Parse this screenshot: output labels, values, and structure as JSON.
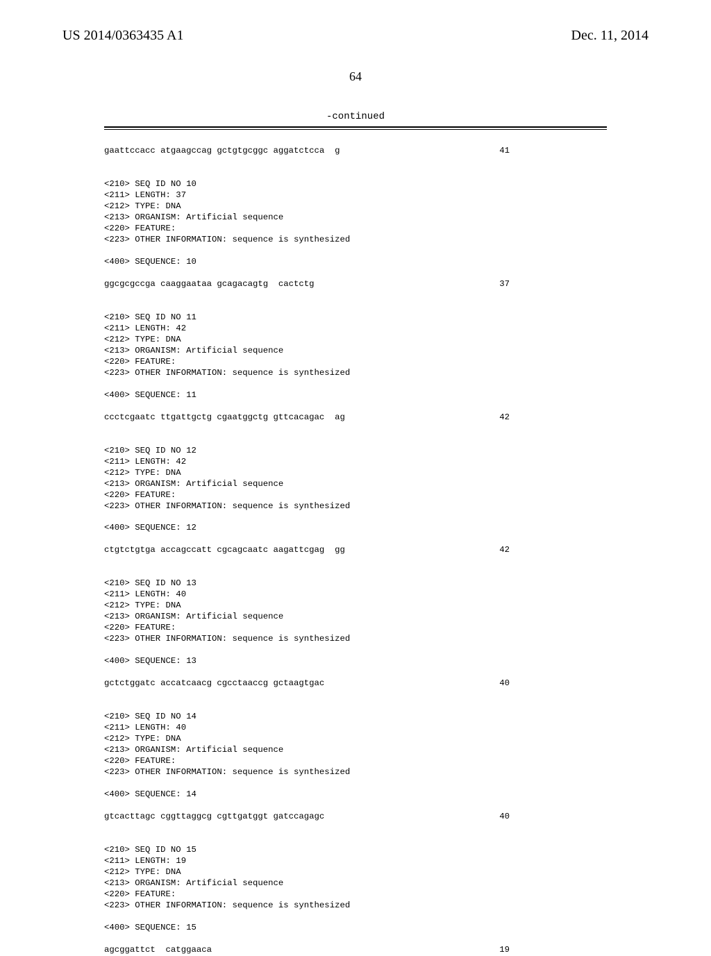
{
  "header": {
    "pub_number": "US 2014/0363435 A1",
    "pub_date": "Dec. 11, 2014",
    "page_number": "64"
  },
  "continued_label": "-continued",
  "entries": [
    {
      "sequence": "gaattccacc atgaagccag gctgtgcggc aggatctcca  g",
      "count": "41"
    },
    {
      "block": [
        "<210> SEQ ID NO 10",
        "<211> LENGTH: 37",
        "<212> TYPE: DNA",
        "<213> ORGANISM: Artificial sequence",
        "<220> FEATURE:",
        "<223> OTHER INFORMATION: sequence is synthesized"
      ]
    },
    {
      "line": "<400> SEQUENCE: 10"
    },
    {
      "sequence": "ggcgcgccga caaggaataa gcagacagtg  cactctg",
      "count": "37"
    },
    {
      "block": [
        "<210> SEQ ID NO 11",
        "<211> LENGTH: 42",
        "<212> TYPE: DNA",
        "<213> ORGANISM: Artificial sequence",
        "<220> FEATURE:",
        "<223> OTHER INFORMATION: sequence is synthesized"
      ]
    },
    {
      "line": "<400> SEQUENCE: 11"
    },
    {
      "sequence": "ccctcgaatc ttgattgctg cgaatggctg gttcacagac  ag",
      "count": "42"
    },
    {
      "block": [
        "<210> SEQ ID NO 12",
        "<211> LENGTH: 42",
        "<212> TYPE: DNA",
        "<213> ORGANISM: Artificial sequence",
        "<220> FEATURE:",
        "<223> OTHER INFORMATION: sequence is synthesized"
      ]
    },
    {
      "line": "<400> SEQUENCE: 12"
    },
    {
      "sequence": "ctgtctgtga accagccatt cgcagcaatc aagattcgag  gg",
      "count": "42"
    },
    {
      "block": [
        "<210> SEQ ID NO 13",
        "<211> LENGTH: 40",
        "<212> TYPE: DNA",
        "<213> ORGANISM: Artificial sequence",
        "<220> FEATURE:",
        "<223> OTHER INFORMATION: sequence is synthesized"
      ]
    },
    {
      "line": "<400> SEQUENCE: 13"
    },
    {
      "sequence": "gctctggatc accatcaacg cgcctaaccg gctaagtgac",
      "count": "40"
    },
    {
      "block": [
        "<210> SEQ ID NO 14",
        "<211> LENGTH: 40",
        "<212> TYPE: DNA",
        "<213> ORGANISM: Artificial sequence",
        "<220> FEATURE:",
        "<223> OTHER INFORMATION: sequence is synthesized"
      ]
    },
    {
      "line": "<400> SEQUENCE: 14"
    },
    {
      "sequence": "gtcacttagc cggttaggcg cgttgatggt gatccagagc",
      "count": "40"
    },
    {
      "block": [
        "<210> SEQ ID NO 15",
        "<211> LENGTH: 19",
        "<212> TYPE: DNA",
        "<213> ORGANISM: Artificial sequence",
        "<220> FEATURE:",
        "<223> OTHER INFORMATION: sequence is synthesized"
      ]
    },
    {
      "line": "<400> SEQUENCE: 15"
    },
    {
      "sequence": "agcggattct  catggaaca",
      "count": "19"
    }
  ]
}
